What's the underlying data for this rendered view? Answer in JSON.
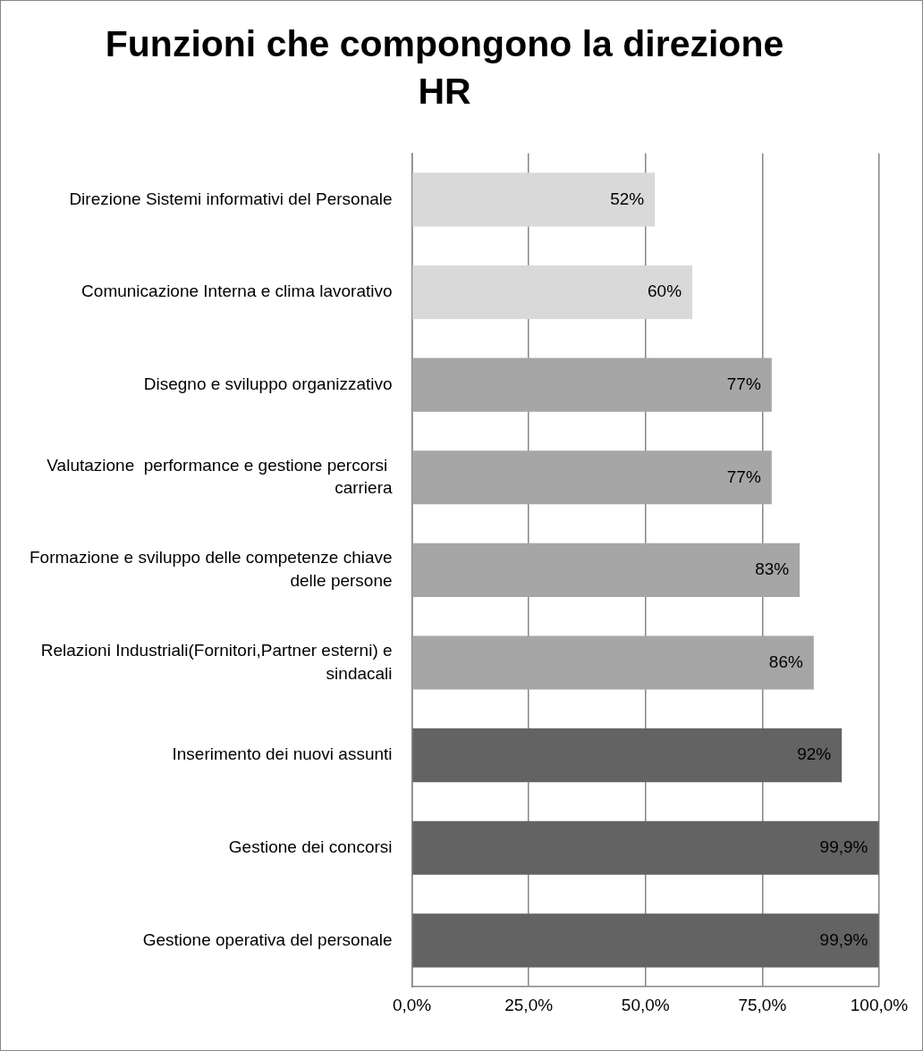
{
  "chart_data": {
    "type": "bar",
    "orientation": "horizontal",
    "title": "Funzioni che compongono la direzione HR",
    "categories": [
      "Direzione Sistemi informativi del Personale",
      "Comunicazione Interna e clima lavorativo",
      "Disegno e sviluppo organizzativo",
      "Valutazione  performance e gestione percorsi  carriera",
      "Formazione e sviluppo delle competenze chiave delle persone",
      "Relazioni Industriali(Fornitori,Partner esterni) e sindacali",
      "Inserimento dei nuovi assunti",
      "Gestione dei concorsi",
      "Gestione operativa del personale"
    ],
    "values": [
      52,
      60,
      77,
      77,
      83,
      86,
      92,
      99.9,
      99.9
    ],
    "value_labels": [
      "52%",
      "60%",
      "77%",
      "77%",
      "83%",
      "86%",
      "92%",
      "99,9%",
      "99,9%"
    ],
    "colors": [
      "#d9d9d9",
      "#d9d9d9",
      "#a6a6a6",
      "#a6a6a6",
      "#a6a6a6",
      "#a6a6a6",
      "#636363",
      "#636363",
      "#636363"
    ],
    "xlim": [
      0,
      100
    ],
    "xticks": [
      {
        "value": 0,
        "label": "0,0%"
      },
      {
        "value": 25,
        "label": "25,0%"
      },
      {
        "value": 50,
        "label": "50,0%"
      },
      {
        "value": 75,
        "label": "75,0%"
      },
      {
        "value": 100,
        "label": "100,0%"
      }
    ],
    "grid": "x",
    "legend": false
  }
}
